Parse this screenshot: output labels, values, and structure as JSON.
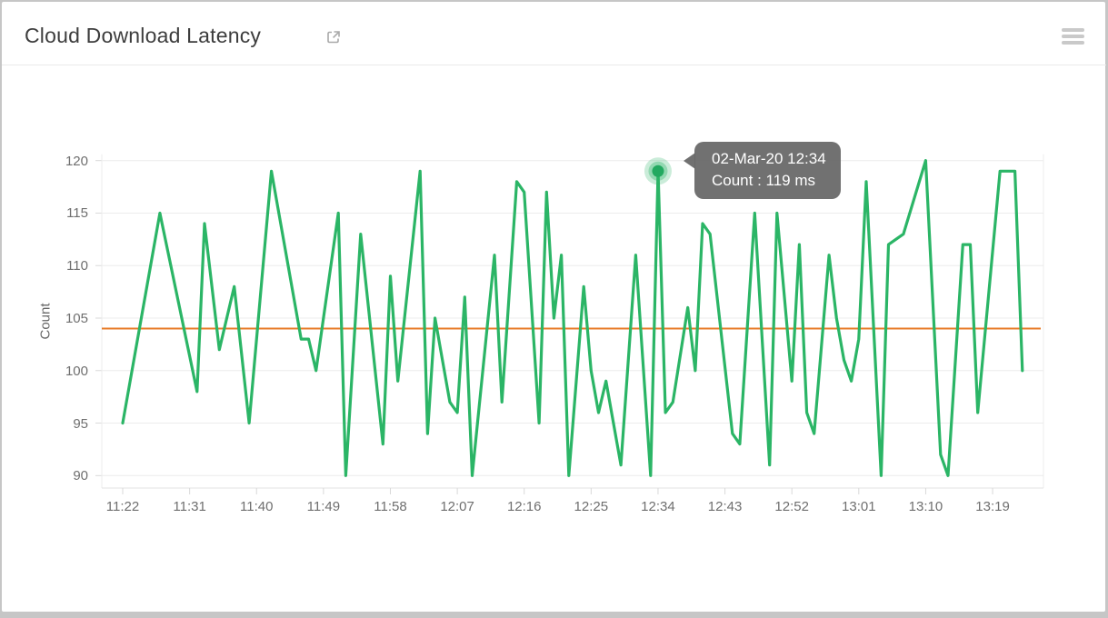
{
  "header": {
    "title": "Cloud Download Latency",
    "external_link_icon": "open-in-new",
    "menu_icon": "hamburger-menu"
  },
  "tooltip": {
    "line1": "02-Mar-20 12:34",
    "line2": "Count : 119 ms"
  },
  "colors": {
    "line_green": "#2bb566",
    "marker_green": "#22a960",
    "threshold_orange": "#e77b28",
    "grid": "#ececec",
    "axis_line": "#e3e3e3",
    "tick_mark": "#d9d9d9",
    "tooltip_bg": "#686868"
  },
  "chart_data": {
    "type": "line",
    "title": "Cloud Download Latency",
    "xlabel": "",
    "ylabel": "Count",
    "unit": "ms",
    "grid": true,
    "legend": "none",
    "ylim": [
      90,
      120
    ],
    "y_ticks": [
      90,
      95,
      100,
      105,
      110,
      115,
      120
    ],
    "x_ticks": [
      "11:22",
      "11:31",
      "11:40",
      "11:49",
      "11:58",
      "12:07",
      "12:16",
      "12:25",
      "12:34",
      "12:43",
      "12:52",
      "13:01",
      "13:10",
      "13:19"
    ],
    "threshold": {
      "value": 104
    },
    "highlight": {
      "time": "12:34",
      "value": 119,
      "label": "02-Mar-20 12:34, Count : 119 ms"
    },
    "series": [
      {
        "name": "Count",
        "points": [
          [
            "11:22",
            95
          ],
          [
            "11:27",
            115
          ],
          [
            "11:32",
            98
          ],
          [
            "11:33",
            114
          ],
          [
            "11:35",
            102
          ],
          [
            "11:37",
            108
          ],
          [
            "11:39",
            95
          ],
          [
            "11:42",
            119
          ],
          [
            "11:46",
            103
          ],
          [
            "11:47",
            103
          ],
          [
            "11:48",
            100
          ],
          [
            "11:51",
            115
          ],
          [
            "11:52",
            90
          ],
          [
            "11:54",
            113
          ],
          [
            "11:57",
            93
          ],
          [
            "11:58",
            109
          ],
          [
            "11:59",
            99
          ],
          [
            "12:02",
            119
          ],
          [
            "12:03",
            94
          ],
          [
            "12:04",
            105
          ],
          [
            "12:06",
            97
          ],
          [
            "12:07",
            96
          ],
          [
            "12:08",
            107
          ],
          [
            "12:09",
            90
          ],
          [
            "12:12",
            111
          ],
          [
            "12:13",
            97
          ],
          [
            "12:15",
            118
          ],
          [
            "12:16",
            117
          ],
          [
            "12:18",
            95
          ],
          [
            "12:19",
            117
          ],
          [
            "12:20",
            105
          ],
          [
            "12:21",
            111
          ],
          [
            "12:22",
            90
          ],
          [
            "12:24",
            108
          ],
          [
            "12:25",
            100
          ],
          [
            "12:26",
            96
          ],
          [
            "12:27",
            99
          ],
          [
            "12:29",
            91
          ],
          [
            "12:31",
            111
          ],
          [
            "12:33",
            90
          ],
          [
            "12:34",
            119
          ],
          [
            "12:35",
            96
          ],
          [
            "12:36",
            97
          ],
          [
            "12:38",
            106
          ],
          [
            "12:39",
            100
          ],
          [
            "12:40",
            114
          ],
          [
            "12:41",
            113
          ],
          [
            "12:44",
            94
          ],
          [
            "12:45",
            93
          ],
          [
            "12:47",
            115
          ],
          [
            "12:49",
            91
          ],
          [
            "12:50",
            115
          ],
          [
            "12:52",
            99
          ],
          [
            "12:53",
            112
          ],
          [
            "12:54",
            96
          ],
          [
            "12:55",
            94
          ],
          [
            "12:57",
            111
          ],
          [
            "12:58",
            105
          ],
          [
            "12:59",
            101
          ],
          [
            "13:00",
            99
          ],
          [
            "13:01",
            103
          ],
          [
            "13:02",
            118
          ],
          [
            "13:04",
            90
          ],
          [
            "13:05",
            112
          ],
          [
            "13:07",
            113
          ],
          [
            "13:10",
            120
          ],
          [
            "13:12",
            92
          ],
          [
            "13:13",
            90
          ],
          [
            "13:15",
            112
          ],
          [
            "13:16",
            112
          ],
          [
            "13:17",
            96
          ],
          [
            "13:20",
            119
          ],
          [
            "13:22",
            119
          ],
          [
            "13:23",
            100
          ]
        ]
      }
    ]
  }
}
